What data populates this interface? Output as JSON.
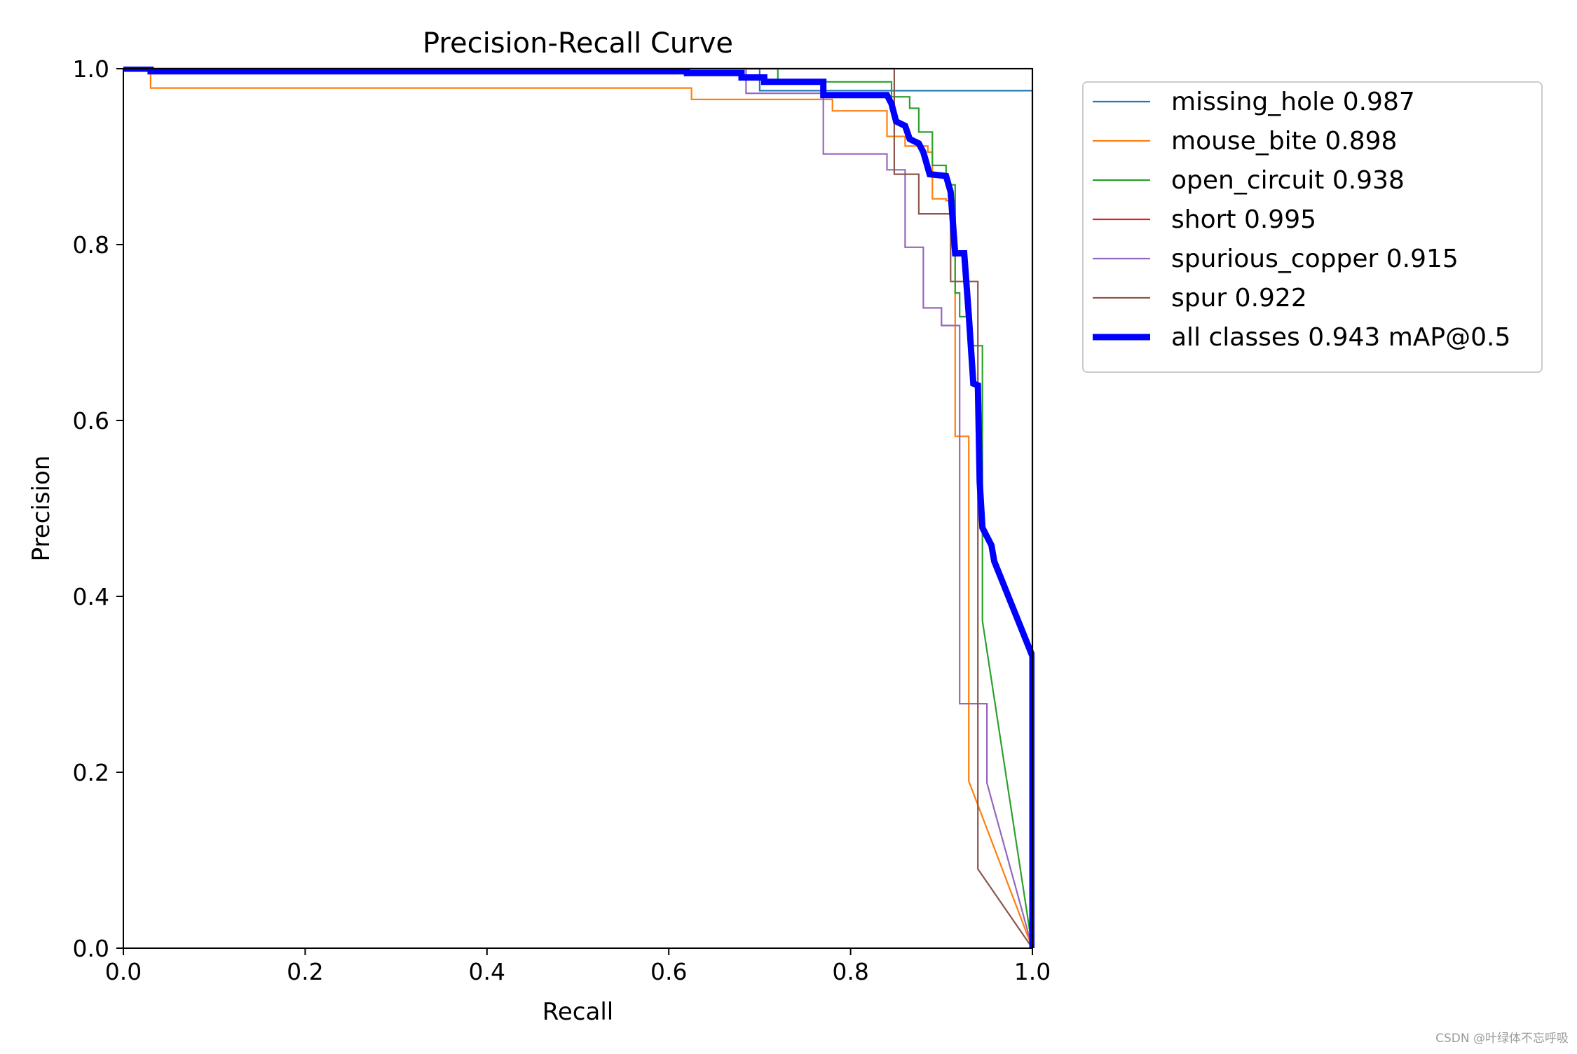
{
  "chart_data": {
    "type": "line",
    "title": "Precision-Recall Curve",
    "xlabel": "Recall",
    "ylabel": "Precision",
    "xlim": [
      0,
      1
    ],
    "ylim": [
      0,
      1
    ],
    "xticks": [
      "0.0",
      "0.2",
      "0.4",
      "0.6",
      "0.8",
      "1.0"
    ],
    "yticks": [
      "0.0",
      "0.2",
      "0.4",
      "0.6",
      "0.8",
      "1.0"
    ],
    "grid": false,
    "legend_position": "outside-right-top",
    "series": [
      {
        "name": "missing_hole 0.987",
        "color": "#1f77b4",
        "width": "thin",
        "points": [
          [
            0,
            1
          ],
          [
            0.7,
            1
          ],
          [
            0.7,
            0.975
          ],
          [
            1.0,
            0.975
          ],
          [
            1.0,
            0
          ]
        ]
      },
      {
        "name": "mouse_bite 0.898",
        "color": "#ff7f0e",
        "width": "thin",
        "points": [
          [
            0,
            1
          ],
          [
            0.03,
            1
          ],
          [
            0.03,
            0.978
          ],
          [
            0.625,
            0.978
          ],
          [
            0.625,
            0.965
          ],
          [
            0.78,
            0.965
          ],
          [
            0.78,
            0.952
          ],
          [
            0.84,
            0.952
          ],
          [
            0.84,
            0.923
          ],
          [
            0.86,
            0.923
          ],
          [
            0.86,
            0.912
          ],
          [
            0.885,
            0.912
          ],
          [
            0.885,
            0.905
          ],
          [
            0.89,
            0.905
          ],
          [
            0.89,
            0.852
          ],
          [
            0.905,
            0.852
          ],
          [
            0.905,
            0.85
          ],
          [
            0.915,
            0.85
          ],
          [
            0.915,
            0.582
          ],
          [
            0.93,
            0.582
          ],
          [
            0.93,
            0.19
          ],
          [
            1.0,
            0
          ]
        ]
      },
      {
        "name": "open_circuit 0.938",
        "color": "#2ca02c",
        "width": "thin",
        "points": [
          [
            0,
            1
          ],
          [
            0.72,
            1
          ],
          [
            0.72,
            0.985
          ],
          [
            0.845,
            0.985
          ],
          [
            0.845,
            0.968
          ],
          [
            0.865,
            0.968
          ],
          [
            0.865,
            0.955
          ],
          [
            0.875,
            0.955
          ],
          [
            0.875,
            0.928
          ],
          [
            0.89,
            0.928
          ],
          [
            0.89,
            0.89
          ],
          [
            0.905,
            0.89
          ],
          [
            0.905,
            0.868
          ],
          [
            0.915,
            0.868
          ],
          [
            0.915,
            0.745
          ],
          [
            0.92,
            0.745
          ],
          [
            0.92,
            0.718
          ],
          [
            0.93,
            0.718
          ],
          [
            0.93,
            0.685
          ],
          [
            0.945,
            0.685
          ],
          [
            0.945,
            0.372
          ],
          [
            1.0,
            0
          ]
        ]
      },
      {
        "name": "short 0.995",
        "color": "#d62728",
        "width": "thin",
        "points": [
          [
            0,
            1
          ],
          [
            0.995,
            1
          ],
          [
            0.995,
            1
          ],
          [
            1.0,
            1
          ],
          [
            1.0,
            0
          ]
        ]
      },
      {
        "name": "spurious_copper 0.915",
        "color": "#9467bd",
        "width": "thin",
        "points": [
          [
            0,
            1
          ],
          [
            0.685,
            1
          ],
          [
            0.685,
            0.972
          ],
          [
            0.77,
            0.972
          ],
          [
            0.77,
            0.903
          ],
          [
            0.84,
            0.903
          ],
          [
            0.84,
            0.885
          ],
          [
            0.86,
            0.885
          ],
          [
            0.86,
            0.797
          ],
          [
            0.88,
            0.797
          ],
          [
            0.88,
            0.728
          ],
          [
            0.9,
            0.728
          ],
          [
            0.9,
            0.708
          ],
          [
            0.92,
            0.708
          ],
          [
            0.92,
            0.278
          ],
          [
            0.95,
            0.278
          ],
          [
            0.95,
            0.188
          ],
          [
            1.0,
            0
          ]
        ]
      },
      {
        "name": "spur 0.922",
        "color": "#8c564b",
        "width": "thin",
        "points": [
          [
            0,
            1
          ],
          [
            0.848,
            1
          ],
          [
            0.848,
            0.88
          ],
          [
            0.875,
            0.88
          ],
          [
            0.875,
            0.835
          ],
          [
            0.91,
            0.835
          ],
          [
            0.91,
            0.758
          ],
          [
            0.94,
            0.758
          ],
          [
            0.94,
            0.09
          ],
          [
            1.0,
            0
          ]
        ]
      },
      {
        "name": "all classes 0.943 mAP@0.5",
        "color": "#0000ff",
        "width": "thick",
        "points": [
          [
            0,
            1
          ],
          [
            0.03,
            1
          ],
          [
            0.03,
            0.997
          ],
          [
            0.62,
            0.997
          ],
          [
            0.62,
            0.995
          ],
          [
            0.68,
            0.995
          ],
          [
            0.68,
            0.99
          ],
          [
            0.705,
            0.99
          ],
          [
            0.705,
            0.985
          ],
          [
            0.77,
            0.985
          ],
          [
            0.77,
            0.97
          ],
          [
            0.84,
            0.97
          ],
          [
            0.845,
            0.96
          ],
          [
            0.85,
            0.94
          ],
          [
            0.86,
            0.935
          ],
          [
            0.865,
            0.92
          ],
          [
            0.875,
            0.915
          ],
          [
            0.88,
            0.905
          ],
          [
            0.887,
            0.88
          ],
          [
            0.905,
            0.878
          ],
          [
            0.91,
            0.86
          ],
          [
            0.915,
            0.79
          ],
          [
            0.925,
            0.79
          ],
          [
            0.93,
            0.72
          ],
          [
            0.935,
            0.642
          ],
          [
            0.94,
            0.64
          ],
          [
            0.942,
            0.53
          ],
          [
            0.945,
            0.478
          ],
          [
            0.955,
            0.458
          ],
          [
            0.958,
            0.44
          ],
          [
            1.0,
            0.332
          ],
          [
            1.0,
            0
          ]
        ]
      }
    ]
  },
  "watermark": "CSDN @叶绿体不忘呼吸"
}
